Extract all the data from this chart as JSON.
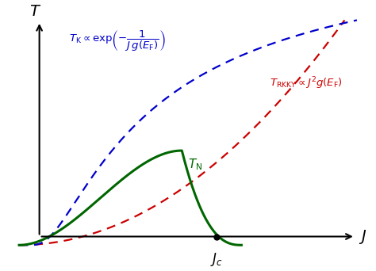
{
  "figsize": [
    4.74,
    3.42
  ],
  "dpi": 100,
  "background_color": "#ffffff",
  "tk_color": "#0000cc",
  "trkky_color": "#cc0000",
  "tn_color": "#006600",
  "tk_label": "$T_{\\mathrm{K}}\\propto\\exp\\!\\left(-\\dfrac{1}{J\\,g(E_{\\mathrm{F}})}\\right)$",
  "trkky_label": "$T_{\\mathrm{RKKY}}\\propto J^{2}g(E_{\\mathrm{F}})$",
  "tn_label": "$T_{\\mathrm{N}}$",
  "xlabel": "$J$",
  "ylabel": "$T$",
  "jc_label": "$J_c$"
}
